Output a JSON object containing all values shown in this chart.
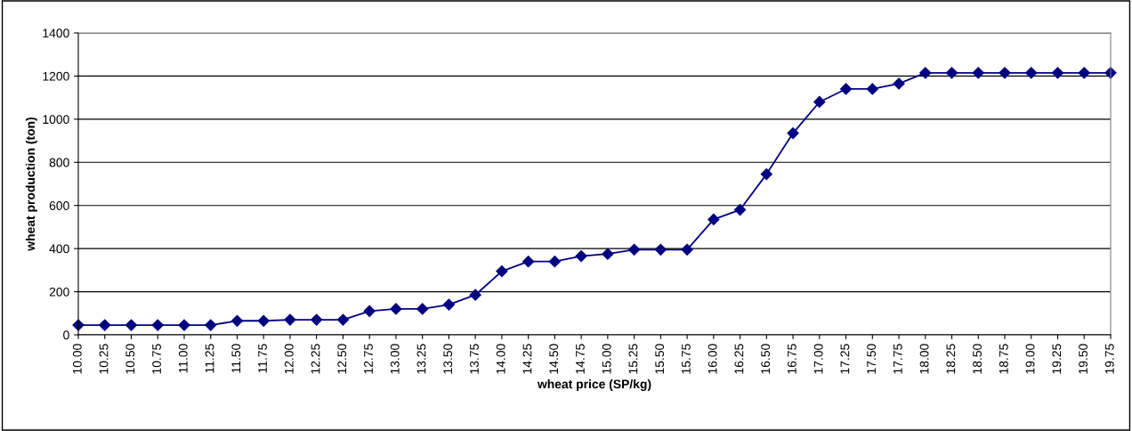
{
  "chart_data": {
    "type": "line",
    "xlabel": "wheat price (SP/kg)",
    "ylabel": "wheat production (ton)",
    "categories": [
      "10.00",
      "10.25",
      "10.50",
      "10.75",
      "11.00",
      "11.25",
      "11.50",
      "11.75",
      "12.00",
      "12.25",
      "12.50",
      "12.75",
      "13.00",
      "13.25",
      "13.50",
      "13.75",
      "14.00",
      "14.25",
      "14.50",
      "14.75",
      "15.00",
      "15.25",
      "15.50",
      "15.75",
      "16.00",
      "16.25",
      "16.50",
      "16.75",
      "17.00",
      "17.25",
      "17.50",
      "17.75",
      "18.00",
      "18.25",
      "18.50",
      "18.75",
      "19.00",
      "19.25",
      "19.50",
      "19.75"
    ],
    "series": [
      {
        "color": "#000080",
        "values": [
          45,
          45,
          45,
          45,
          45,
          45,
          65,
          65,
          70,
          70,
          70,
          110,
          120,
          120,
          140,
          185,
          295,
          340,
          340,
          365,
          375,
          395,
          395,
          395,
          535,
          580,
          745,
          935,
          1080,
          1140,
          1140,
          1165,
          1215,
          1215,
          1215,
          1215,
          1215,
          1215,
          1215,
          1215
        ]
      }
    ],
    "ylim": [
      0,
      1400
    ],
    "yticks": [
      0,
      200,
      400,
      600,
      800,
      1000,
      1200,
      1400
    ],
    "grid": "y",
    "legend": false,
    "marker": "diamond",
    "line_style": "solid"
  }
}
